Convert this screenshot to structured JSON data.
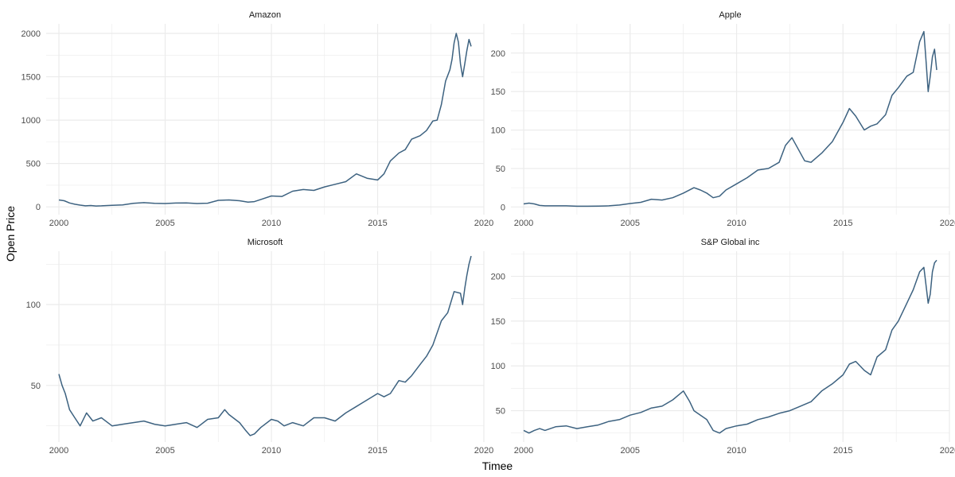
{
  "chart_data": {
    "type": "line",
    "layout": "facet-grid-2x2",
    "xlabel": "Timee",
    "ylabel": "Open Price",
    "line_color": "#3d6280",
    "grid_color": "#ebebeb",
    "x_breaks": [
      2000,
      2005,
      2010,
      2015,
      2020
    ],
    "x_tick_labels": [
      "2000",
      "2005",
      "2010",
      "2015",
      "2020"
    ],
    "panels": [
      {
        "title": "Amazon",
        "xlim": [
          1999.4,
          2020.0
        ],
        "ylim": [
          -90,
          2110
        ],
        "y_breaks": [
          0,
          500,
          1000,
          1500,
          2000
        ],
        "y_tick_labels": [
          "0",
          "500",
          "1000",
          "1500",
          "2000"
        ],
        "x": [
          2000.0,
          2000.25,
          2000.5,
          2000.75,
          2001.0,
          2001.25,
          2001.5,
          2001.75,
          2002.0,
          2002.5,
          2003.0,
          2003.5,
          2004.0,
          2004.5,
          2005.0,
          2005.5,
          2006.0,
          2006.5,
          2007.0,
          2007.5,
          2008.0,
          2008.5,
          2008.9,
          2009.2,
          2009.5,
          2010.0,
          2010.5,
          2011.0,
          2011.5,
          2012.0,
          2012.5,
          2013.0,
          2013.5,
          2014.0,
          2014.5,
          2015.0,
          2015.3,
          2015.6,
          2016.0,
          2016.3,
          2016.6,
          2017.0,
          2017.3,
          2017.6,
          2017.8,
          2018.0,
          2018.2,
          2018.4,
          2018.5,
          2018.6,
          2018.7,
          2018.8,
          2018.9,
          2019.0,
          2019.1,
          2019.2,
          2019.3,
          2019.4
        ],
        "y": [
          80,
          70,
          45,
          30,
          20,
          12,
          15,
          10,
          12,
          18,
          22,
          40,
          48,
          40,
          38,
          44,
          45,
          38,
          42,
          75,
          80,
          70,
          55,
          60,
          85,
          125,
          120,
          180,
          200,
          190,
          230,
          260,
          290,
          380,
          330,
          310,
          380,
          530,
          620,
          660,
          780,
          820,
          880,
          990,
          1000,
          1180,
          1450,
          1580,
          1700,
          1890,
          2000,
          1900,
          1650,
          1500,
          1650,
          1800,
          1930,
          1850
        ]
      },
      {
        "title": "Apple",
        "xlim": [
          1999.4,
          2020.0
        ],
        "ylim": [
          -10,
          238
        ],
        "y_breaks": [
          0,
          50,
          100,
          150,
          200
        ],
        "y_tick_labels": [
          "0",
          "50",
          "100",
          "150",
          "200"
        ],
        "x": [
          2000.0,
          2000.25,
          2000.5,
          2000.75,
          2001.0,
          2001.5,
          2002.0,
          2002.5,
          2003.0,
          2003.5,
          2004.0,
          2004.5,
          2005.0,
          2005.5,
          2006.0,
          2006.5,
          2007.0,
          2007.5,
          2008.0,
          2008.3,
          2008.6,
          2008.9,
          2009.2,
          2009.5,
          2010.0,
          2010.5,
          2011.0,
          2011.5,
          2012.0,
          2012.3,
          2012.6,
          2012.9,
          2013.2,
          2013.5,
          2014.0,
          2014.5,
          2015.0,
          2015.3,
          2015.6,
          2016.0,
          2016.3,
          2016.6,
          2017.0,
          2017.3,
          2017.6,
          2018.0,
          2018.3,
          2018.6,
          2018.8,
          2018.9,
          2019.0,
          2019.1,
          2019.2,
          2019.3,
          2019.4
        ],
        "y": [
          4,
          5,
          4,
          2,
          1.5,
          1.5,
          1.5,
          1,
          1,
          1.2,
          1.5,
          2.5,
          4.5,
          6,
          10,
          9,
          12,
          18,
          25,
          22,
          18,
          12,
          14,
          22,
          30,
          38,
          48,
          50,
          58,
          80,
          90,
          75,
          60,
          58,
          70,
          85,
          110,
          128,
          118,
          100,
          105,
          108,
          120,
          145,
          155,
          170,
          175,
          215,
          228,
          190,
          150,
          170,
          195,
          205,
          178
        ]
      },
      {
        "title": "Microsoft",
        "xlim": [
          1999.4,
          2020.0
        ],
        "ylim": [
          15,
          133
        ],
        "y_breaks": [
          50,
          100
        ],
        "y_tick_labels": [
          "50",
          "100"
        ],
        "x": [
          2000.0,
          2000.15,
          2000.3,
          2000.5,
          2000.75,
          2001.0,
          2001.3,
          2001.6,
          2002.0,
          2002.5,
          2003.0,
          2003.5,
          2004.0,
          2004.5,
          2005.0,
          2005.5,
          2006.0,
          2006.5,
          2007.0,
          2007.5,
          2007.8,
          2008.0,
          2008.5,
          2008.8,
          2009.0,
          2009.2,
          2009.5,
          2010.0,
          2010.3,
          2010.6,
          2011.0,
          2011.5,
          2012.0,
          2012.5,
          2013.0,
          2013.5,
          2014.0,
          2014.5,
          2015.0,
          2015.3,
          2015.6,
          2016.0,
          2016.3,
          2016.6,
          2017.0,
          2017.3,
          2017.6,
          2018.0,
          2018.3,
          2018.6,
          2018.9,
          2019.0,
          2019.1,
          2019.2,
          2019.3,
          2019.4
        ],
        "y": [
          57,
          50,
          45,
          35,
          30,
          25,
          33,
          28,
          30,
          25,
          26,
          27,
          28,
          26,
          25,
          26,
          27,
          24,
          29,
          30,
          35,
          32,
          27,
          22,
          19,
          20,
          24,
          29,
          28,
          25,
          27,
          25,
          30,
          30,
          28,
          33,
          37,
          41,
          45,
          43,
          45,
          53,
          52,
          56,
          63,
          68,
          75,
          90,
          95,
          108,
          107,
          100,
          110,
          118,
          125,
          130
        ]
      },
      {
        "title": "S&P Global inc",
        "xlim": [
          1999.4,
          2020.0
        ],
        "ylim": [
          15,
          228
        ],
        "y_breaks": [
          50,
          100,
          150,
          200
        ],
        "y_tick_labels": [
          "50",
          "100",
          "150",
          "200"
        ],
        "x": [
          2000.0,
          2000.25,
          2000.5,
          2000.75,
          2001.0,
          2001.5,
          2002.0,
          2002.5,
          2003.0,
          2003.5,
          2004.0,
          2004.5,
          2005.0,
          2005.5,
          2006.0,
          2006.5,
          2007.0,
          2007.3,
          2007.5,
          2007.8,
          2008.0,
          2008.3,
          2008.6,
          2008.9,
          2009.2,
          2009.5,
          2010.0,
          2010.5,
          2011.0,
          2011.5,
          2012.0,
          2012.5,
          2013.0,
          2013.5,
          2014.0,
          2014.5,
          2015.0,
          2015.3,
          2015.6,
          2016.0,
          2016.3,
          2016.6,
          2017.0,
          2017.3,
          2017.6,
          2018.0,
          2018.3,
          2018.6,
          2018.8,
          2018.9,
          2019.0,
          2019.1,
          2019.2,
          2019.3,
          2019.4
        ],
        "y": [
          28,
          25,
          28,
          30,
          28,
          32,
          33,
          30,
          32,
          34,
          38,
          40,
          45,
          48,
          53,
          55,
          62,
          68,
          72,
          60,
          50,
          45,
          40,
          28,
          25,
          30,
          33,
          35,
          40,
          43,
          47,
          50,
          55,
          60,
          72,
          80,
          90,
          102,
          105,
          95,
          90,
          110,
          118,
          140,
          150,
          170,
          185,
          205,
          210,
          190,
          170,
          180,
          205,
          215,
          218
        ]
      }
    ]
  }
}
